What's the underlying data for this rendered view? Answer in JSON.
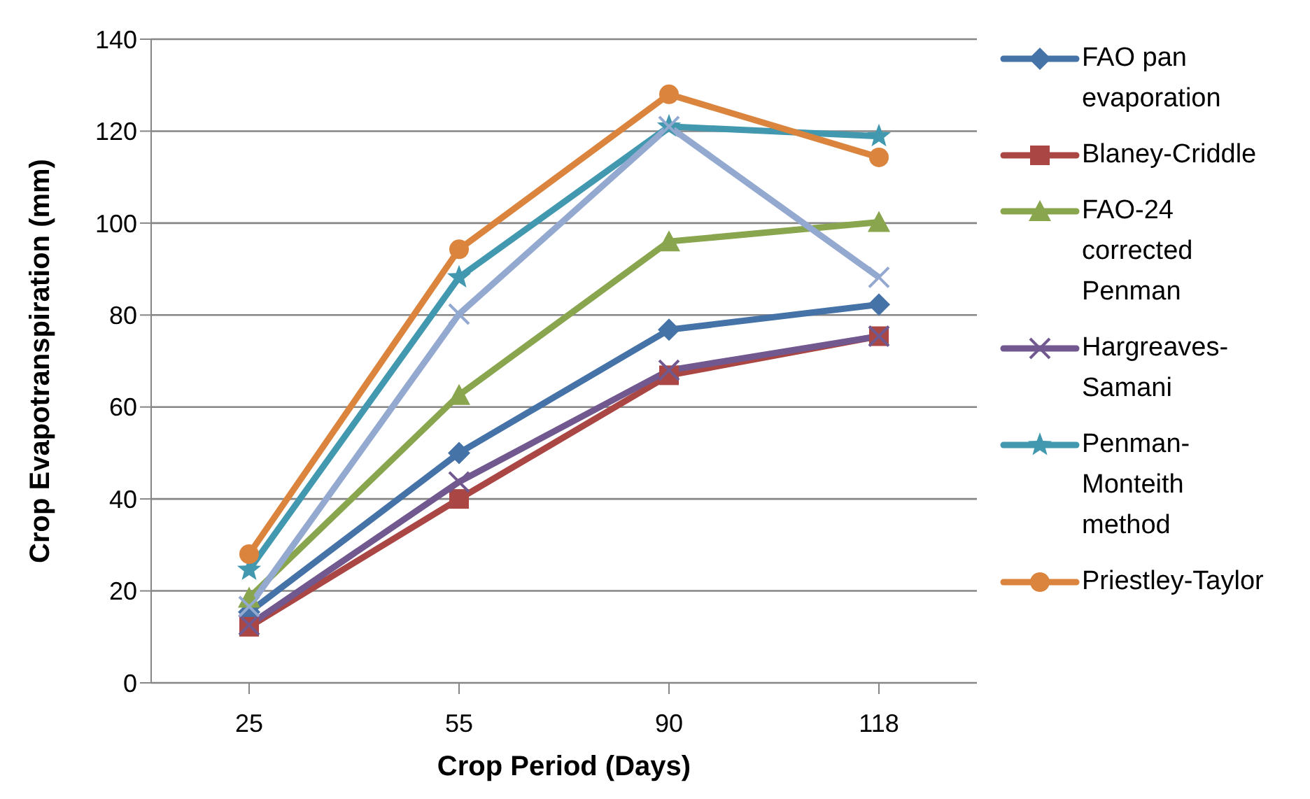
{
  "chart_data": {
    "type": "line",
    "xlabel": "Crop Period (Days)",
    "ylabel": "Crop Evapotranspiration (mm)",
    "categories": [
      "25",
      "55",
      "90",
      "118"
    ],
    "ylim": [
      0,
      140
    ],
    "yticks": [
      0,
      20,
      40,
      60,
      80,
      100,
      120,
      140
    ],
    "grid": "y",
    "legend": "right",
    "series": [
      {
        "name": "FAO pan evaporation",
        "color": "#4572a7",
        "marker": "diamond",
        "values": [
          15.4,
          50,
          76.8,
          82.3
        ]
      },
      {
        "name": "Blaney-Criddle",
        "color": "#aa4643",
        "marker": "square",
        "values": [
          12.2,
          40,
          66.9,
          75.4
        ]
      },
      {
        "name": "FAO-24 corrected Penman",
        "color": "#89a54e",
        "marker": "triangle",
        "values": [
          18.5,
          62.6,
          96,
          100.2
        ]
      },
      {
        "name": "Hargreaves-Samani",
        "color": "#71588f",
        "marker": "cross",
        "values": [
          12.6,
          43.7,
          68,
          75.4
        ]
      },
      {
        "name": "Penman-Monteith method",
        "color": "#4198af",
        "marker": "star",
        "values": [
          24.6,
          88.2,
          121,
          118.9
        ]
      },
      {
        "name": "Priestley-Taylor",
        "color": "#db843d",
        "marker": "circle",
        "values": [
          28,
          94.3,
          128,
          114.3
        ]
      },
      {
        "color": "#93a9cf",
        "marker": "cross",
        "values": [
          16.6,
          80.2,
          121,
          88.2
        ]
      }
    ]
  }
}
